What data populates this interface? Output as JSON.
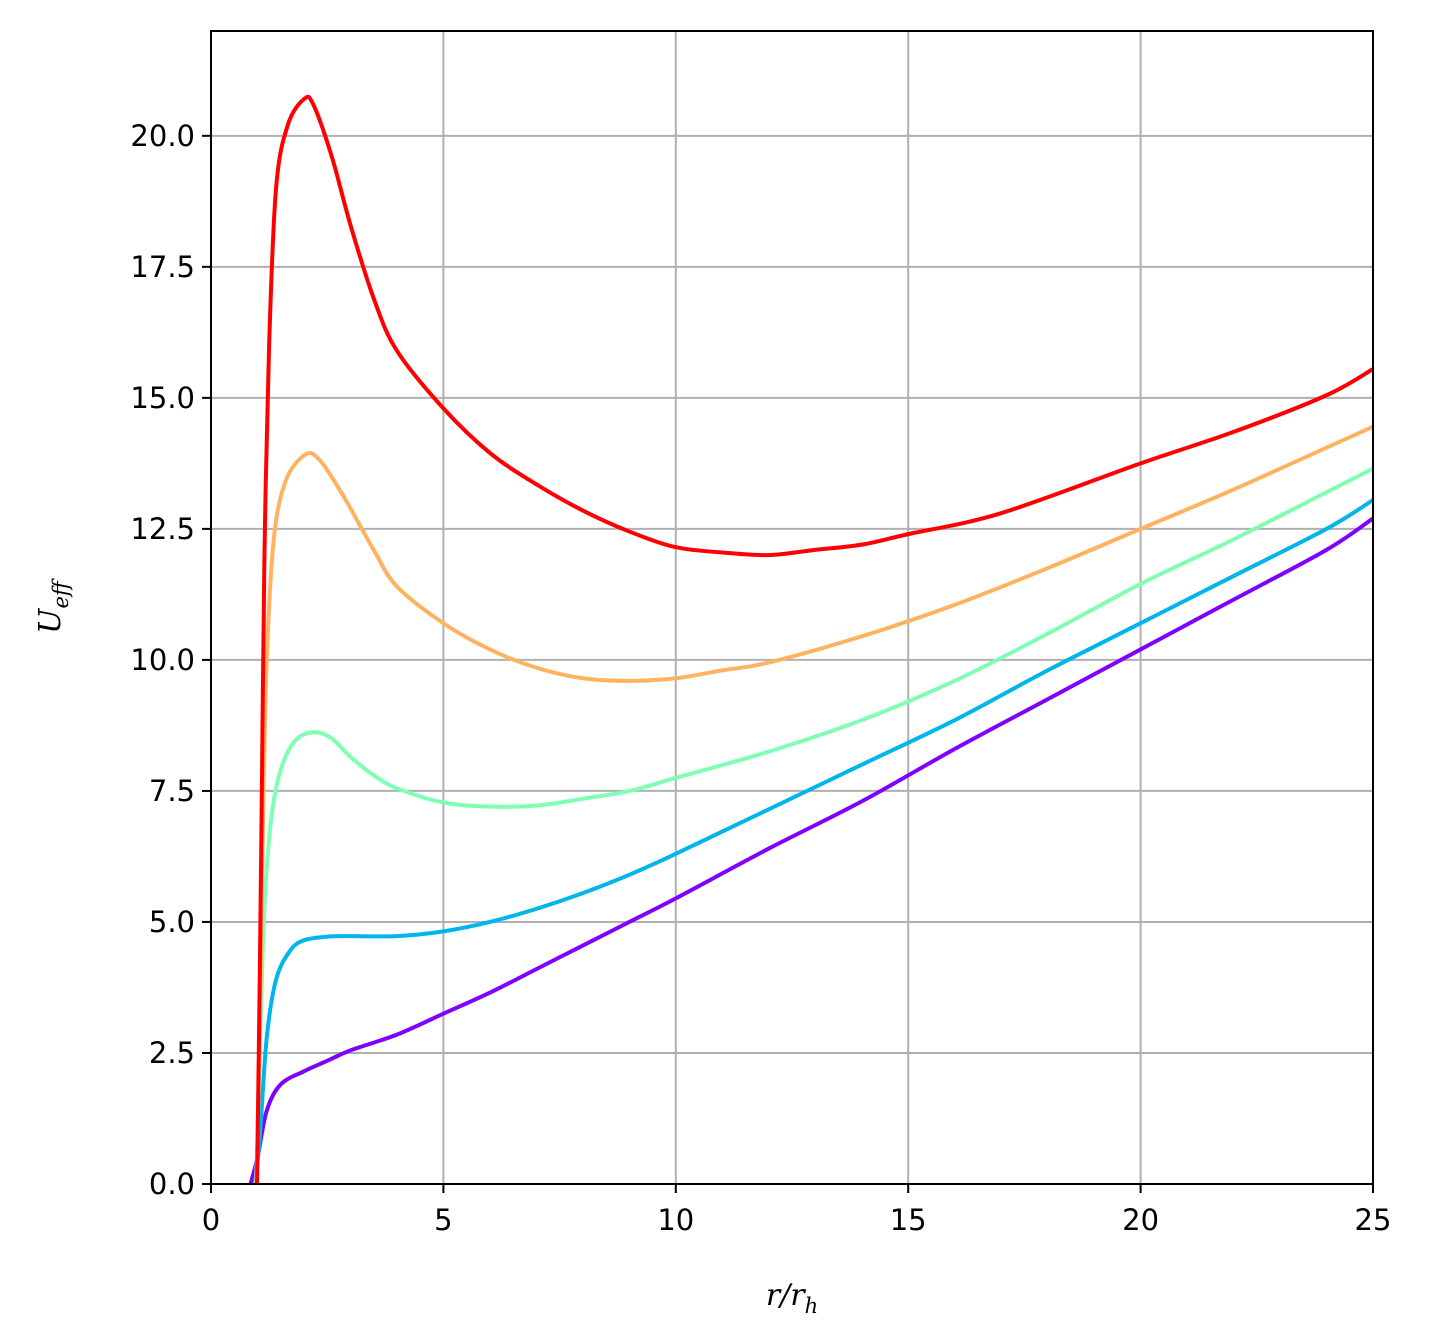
{
  "chart_data": {
    "type": "line",
    "xlabel": {
      "main": "r/r",
      "sub": "h"
    },
    "ylabel": {
      "main": "U",
      "sub": "eff"
    },
    "xlim": [
      0,
      25
    ],
    "ylim": [
      0,
      22
    ],
    "grid": true,
    "x_ticks": [
      0,
      5,
      10,
      15,
      20,
      25
    ],
    "x_tick_labels": [
      "0",
      "5",
      "10",
      "15",
      "20",
      "25"
    ],
    "y_ticks": [
      0,
      2.5,
      5,
      7.5,
      10,
      12.5,
      15,
      17.5,
      20
    ],
    "y_tick_labels": [
      "0.0",
      "2.5",
      "5.0",
      "7.5",
      "10.0",
      "12.5",
      "15.0",
      "17.5",
      "20.0"
    ],
    "series": [
      {
        "color": "#8000ff",
        "points": [
          [
            0.85,
            0
          ],
          [
            1.0,
            0.5
          ],
          [
            1.2,
            1.4
          ],
          [
            1.5,
            1.9
          ],
          [
            2.0,
            2.15
          ],
          [
            2.5,
            2.35
          ],
          [
            3,
            2.55
          ],
          [
            4,
            2.85
          ],
          [
            5,
            3.25
          ],
          [
            6,
            3.65
          ],
          [
            7,
            4.1
          ],
          [
            8,
            4.55
          ],
          [
            9,
            5.0
          ],
          [
            10,
            5.45
          ],
          [
            12,
            6.4
          ],
          [
            14,
            7.3
          ],
          [
            16,
            8.3
          ],
          [
            18,
            9.25
          ],
          [
            20,
            10.2
          ],
          [
            22,
            11.15
          ],
          [
            24,
            12.1
          ],
          [
            25,
            12.7
          ]
        ]
      },
      {
        "color": "#00b5eb",
        "points": [
          [
            0.95,
            0
          ],
          [
            1.05,
            0.9
          ],
          [
            1.2,
            2.8
          ],
          [
            1.4,
            3.9
          ],
          [
            1.7,
            4.45
          ],
          [
            2.0,
            4.65
          ],
          [
            2.5,
            4.72
          ],
          [
            3,
            4.73
          ],
          [
            4,
            4.73
          ],
          [
            5,
            4.82
          ],
          [
            6,
            5.0
          ],
          [
            7,
            5.25
          ],
          [
            8,
            5.55
          ],
          [
            9,
            5.9
          ],
          [
            10,
            6.3
          ],
          [
            12,
            7.15
          ],
          [
            14,
            8.0
          ],
          [
            16,
            8.85
          ],
          [
            18,
            9.8
          ],
          [
            20,
            10.7
          ],
          [
            22,
            11.6
          ],
          [
            24,
            12.5
          ],
          [
            25,
            13.05
          ]
        ]
      },
      {
        "color": "#80ffb4",
        "points": [
          [
            0.97,
            0
          ],
          [
            1.05,
            2.5
          ],
          [
            1.15,
            5.3
          ],
          [
            1.3,
            7.0
          ],
          [
            1.5,
            7.9
          ],
          [
            1.8,
            8.45
          ],
          [
            2.2,
            8.62
          ],
          [
            2.6,
            8.5
          ],
          [
            3,
            8.15
          ],
          [
            3.5,
            7.8
          ],
          [
            4,
            7.55
          ],
          [
            5,
            7.28
          ],
          [
            6,
            7.2
          ],
          [
            7,
            7.22
          ],
          [
            8,
            7.35
          ],
          [
            9,
            7.5
          ],
          [
            10,
            7.75
          ],
          [
            12,
            8.25
          ],
          [
            14,
            8.85
          ],
          [
            16,
            9.6
          ],
          [
            18,
            10.5
          ],
          [
            20,
            11.45
          ],
          [
            22,
            12.3
          ],
          [
            24,
            13.2
          ],
          [
            25,
            13.65
          ]
        ]
      },
      {
        "color": "#ffb360",
        "points": [
          [
            0.98,
            0
          ],
          [
            1.05,
            3
          ],
          [
            1.12,
            7
          ],
          [
            1.2,
            10
          ],
          [
            1.35,
            12.3
          ],
          [
            1.6,
            13.4
          ],
          [
            2.0,
            13.9
          ],
          [
            2.3,
            13.85
          ],
          [
            2.8,
            13.2
          ],
          [
            3.5,
            12.1
          ],
          [
            4,
            11.4
          ],
          [
            5,
            10.7
          ],
          [
            6,
            10.2
          ],
          [
            7,
            9.85
          ],
          [
            8,
            9.65
          ],
          [
            9,
            9.6
          ],
          [
            10,
            9.65
          ],
          [
            11,
            9.8
          ],
          [
            12,
            9.95
          ],
          [
            14,
            10.45
          ],
          [
            16,
            11.05
          ],
          [
            18,
            11.75
          ],
          [
            20,
            12.5
          ],
          [
            22,
            13.25
          ],
          [
            24,
            14.05
          ],
          [
            25,
            14.45
          ]
        ]
      },
      {
        "color": "#ff0000",
        "points": [
          [
            0.99,
            0
          ],
          [
            1.05,
            4
          ],
          [
            1.1,
            8
          ],
          [
            1.15,
            12
          ],
          [
            1.25,
            16
          ],
          [
            1.4,
            19
          ],
          [
            1.65,
            20.2
          ],
          [
            2.0,
            20.7
          ],
          [
            2.2,
            20.6
          ],
          [
            2.6,
            19.6
          ],
          [
            3,
            18.3
          ],
          [
            3.5,
            16.9
          ],
          [
            4,
            15.9
          ],
          [
            5,
            14.8
          ],
          [
            6,
            13.95
          ],
          [
            7,
            13.35
          ],
          [
            8,
            12.85
          ],
          [
            9,
            12.45
          ],
          [
            10,
            12.15
          ],
          [
            11,
            12.05
          ],
          [
            12,
            12.0
          ],
          [
            13,
            12.1
          ],
          [
            14,
            12.2
          ],
          [
            15,
            12.4
          ],
          [
            17,
            12.8
          ],
          [
            20,
            13.75
          ],
          [
            22,
            14.35
          ],
          [
            24,
            15.05
          ],
          [
            25,
            15.55
          ]
        ]
      }
    ]
  }
}
